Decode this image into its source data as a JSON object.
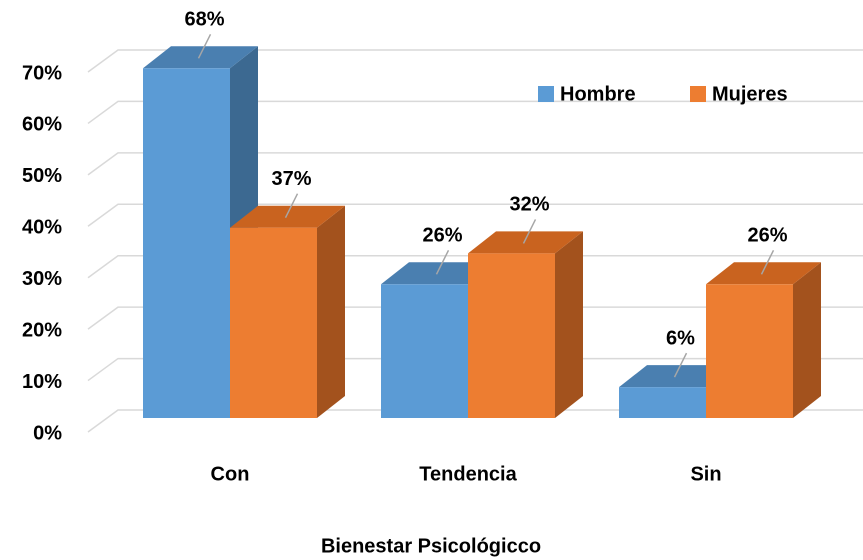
{
  "chart_data": {
    "type": "bar3d",
    "x_label": "Bienestar Psicológicco",
    "categories": [
      "Con",
      "Tendencia",
      "Sin"
    ],
    "series": [
      {
        "name": "Hombre",
        "color": "#5b9bd5",
        "side_color": "#3c6991",
        "top_color": "#4a7fb0",
        "values": [
          68,
          26,
          6
        ],
        "value_labels": [
          "68%",
          "26%",
          "6%"
        ]
      },
      {
        "name": "Mujeres",
        "color": "#ed7d31",
        "side_color": "#a3521d",
        "top_color": "#c9631f",
        "values": [
          37,
          32,
          26
        ],
        "value_labels": [
          "37%",
          "32%",
          "26%"
        ]
      }
    ],
    "ylim": [
      0,
      70
    ],
    "yticks": [
      {
        "value": 0,
        "label": "0%"
      },
      {
        "value": 10,
        "label": "10%"
      },
      {
        "value": 20,
        "label": "20%"
      },
      {
        "value": 30,
        "label": "30%"
      },
      {
        "value": 40,
        "label": "40%"
      },
      {
        "value": 50,
        "label": "50%"
      },
      {
        "value": 60,
        "label": "60%"
      },
      {
        "value": 70,
        "label": "70%"
      }
    ],
    "grid": true,
    "legend": "top-right"
  }
}
